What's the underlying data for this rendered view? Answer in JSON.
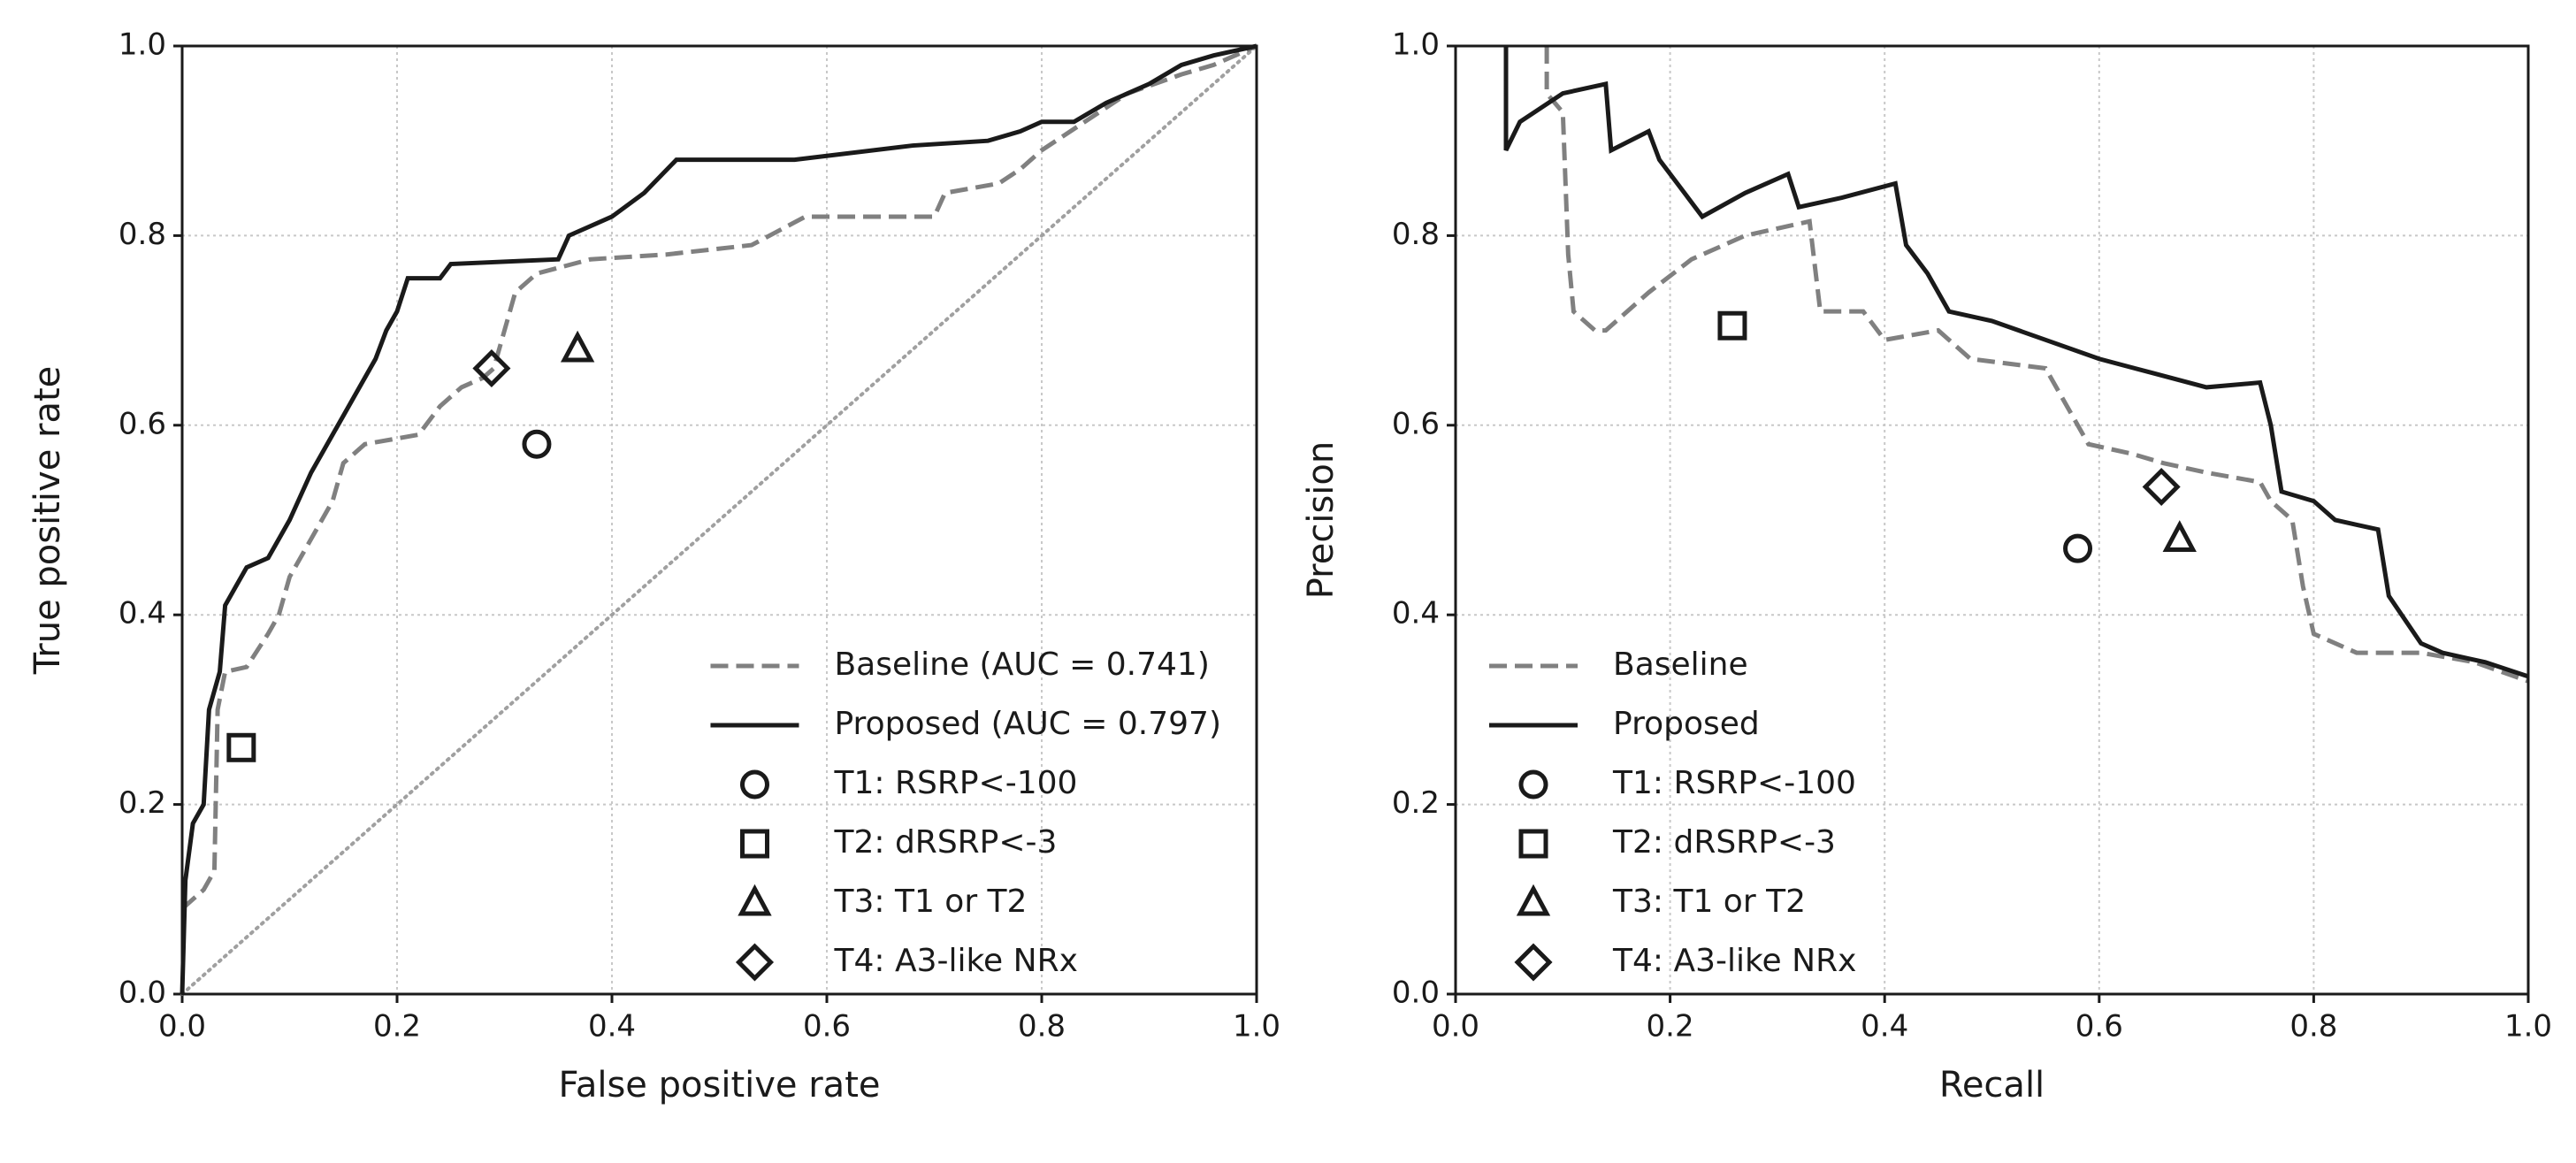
{
  "chart_data": [
    {
      "type": "line",
      "x_label": "False positive rate",
      "y_label": "True positive rate",
      "xlim": [
        0,
        1
      ],
      "ylim": [
        0,
        1
      ],
      "xticks": [
        {
          "value": 0,
          "label": "0.0"
        },
        0.2,
        0.4,
        0.6,
        0.8,
        {
          "value": 1,
          "label": "1.0"
        }
      ],
      "yticks": [
        {
          "value": 0,
          "label": "0.0"
        },
        0.2,
        0.4,
        0.6,
        0.8,
        {
          "value": 1,
          "label": "1.0"
        }
      ],
      "grid": true,
      "chance_line": true,
      "legend": "lower right",
      "series": [
        {
          "name": "Baseline (AUC = 0.741)",
          "color": "#808080",
          "style": "dashed",
          "x": [
            0,
            0.02,
            0.03,
            0.033,
            0.04,
            0.06,
            0.08,
            0.09,
            0.1,
            0.12,
            0.14,
            0.15,
            0.17,
            0.22,
            0.24,
            0.26,
            0.28,
            0.29,
            0.3,
            0.31,
            0.33,
            0.38,
            0.45,
            0.53,
            0.58,
            0.7,
            0.71,
            0.76,
            0.78,
            0.8,
            0.84,
            0.88,
            0.93,
            0.96,
            1
          ],
          "values": [
            0.09,
            0.11,
            0.13,
            0.3,
            0.34,
            0.345,
            0.38,
            0.4,
            0.44,
            0.48,
            0.52,
            0.56,
            0.58,
            0.59,
            0.62,
            0.64,
            0.65,
            0.66,
            0.7,
            0.74,
            0.76,
            0.775,
            0.78,
            0.79,
            0.82,
            0.82,
            0.845,
            0.855,
            0.87,
            0.89,
            0.92,
            0.95,
            0.97,
            0.98,
            1
          ]
        },
        {
          "name": "Proposed (AUC = 0.797)",
          "color": "#1a1a1a",
          "style": "solid",
          "x": [
            0,
            0.003,
            0.01,
            0.02,
            0.025,
            0.035,
            0.04,
            0.05,
            0.06,
            0.08,
            0.1,
            0.12,
            0.14,
            0.15,
            0.16,
            0.18,
            0.19,
            0.2,
            0.21,
            0.24,
            0.25,
            0.35,
            0.36,
            0.4,
            0.43,
            0.46,
            0.57,
            0.68,
            0.75,
            0.78,
            0.8,
            0.83,
            0.86,
            0.9,
            0.93,
            0.96,
            1
          ],
          "values": [
            0,
            0.12,
            0.18,
            0.2,
            0.3,
            0.34,
            0.41,
            0.43,
            0.45,
            0.46,
            0.5,
            0.55,
            0.59,
            0.61,
            0.63,
            0.67,
            0.7,
            0.72,
            0.755,
            0.755,
            0.77,
            0.775,
            0.8,
            0.82,
            0.845,
            0.88,
            0.88,
            0.895,
            0.9,
            0.91,
            0.92,
            0.92,
            0.94,
            0.96,
            0.98,
            0.99,
            1
          ]
        },
        {
          "name": "T1: RSRP<-100",
          "color": "#1a1a1a",
          "marker": "circle",
          "x": [
            0.33
          ],
          "values": [
            0.58
          ]
        },
        {
          "name": "T2: dRSRP<-3",
          "color": "#1a1a1a",
          "marker": "square",
          "x": [
            0.055
          ],
          "values": [
            0.26
          ]
        },
        {
          "name": "T3: T1 or T2",
          "color": "#1a1a1a",
          "marker": "triangle",
          "x": [
            0.368
          ],
          "values": [
            0.68
          ]
        },
        {
          "name": "T4: A3-like NRx",
          "color": "#1a1a1a",
          "marker": "diamond",
          "x": [
            0.288
          ],
          "values": [
            0.66
          ]
        }
      ]
    },
    {
      "type": "line",
      "x_label": "Recall",
      "y_label": "Precision",
      "xlim": [
        0,
        1
      ],
      "ylim": [
        0,
        1
      ],
      "xticks": [
        {
          "value": 0,
          "label": "0.0"
        },
        0.2,
        0.4,
        0.6,
        0.8,
        {
          "value": 1,
          "label": "1.0"
        }
      ],
      "yticks": [
        {
          "value": 0,
          "label": "0.0"
        },
        0.2,
        0.4,
        0.6,
        0.8,
        {
          "value": 1,
          "label": "1.0"
        }
      ],
      "grid": true,
      "chance_line": false,
      "legend": "lower left",
      "series": [
        {
          "name": "Baseline",
          "color": "#808080",
          "style": "dashed",
          "x": [
            0.085,
            0.085,
            0.1,
            0.105,
            0.11,
            0.13,
            0.14,
            0.18,
            0.22,
            0.27,
            0.33,
            0.34,
            0.38,
            0.4,
            0.45,
            0.48,
            0.55,
            0.57,
            0.59,
            0.63,
            0.66,
            0.7,
            0.75,
            0.76,
            0.78,
            0.79,
            0.8,
            0.84,
            0.9,
            0.95,
            1
          ],
          "values": [
            1,
            0.95,
            0.93,
            0.78,
            0.72,
            0.7,
            0.7,
            0.74,
            0.775,
            0.8,
            0.815,
            0.72,
            0.72,
            0.69,
            0.7,
            0.67,
            0.66,
            0.62,
            0.58,
            0.57,
            0.56,
            0.55,
            0.54,
            0.52,
            0.5,
            0.43,
            0.38,
            0.36,
            0.36,
            0.35,
            0.33
          ]
        },
        {
          "name": "Proposed",
          "color": "#1a1a1a",
          "style": "solid",
          "x": [
            0.047,
            0.047,
            0.06,
            0.1,
            0.14,
            0.145,
            0.18,
            0.19,
            0.21,
            0.23,
            0.27,
            0.31,
            0.32,
            0.36,
            0.41,
            0.42,
            0.44,
            0.46,
            0.5,
            0.55,
            0.6,
            0.65,
            0.7,
            0.75,
            0.76,
            0.77,
            0.8,
            0.82,
            0.86,
            0.87,
            0.9,
            0.92,
            0.96,
            1
          ],
          "values": [
            1,
            0.89,
            0.92,
            0.95,
            0.96,
            0.89,
            0.91,
            0.88,
            0.85,
            0.82,
            0.845,
            0.865,
            0.83,
            0.84,
            0.855,
            0.79,
            0.76,
            0.72,
            0.71,
            0.69,
            0.67,
            0.655,
            0.64,
            0.645,
            0.6,
            0.53,
            0.52,
            0.5,
            0.49,
            0.42,
            0.37,
            0.36,
            0.35,
            0.335
          ]
        },
        {
          "name": "T1: RSRP<-100",
          "color": "#1a1a1a",
          "marker": "circle",
          "x": [
            0.58
          ],
          "values": [
            0.47
          ]
        },
        {
          "name": "T2: dRSRP<-3",
          "color": "#1a1a1a",
          "marker": "square",
          "x": [
            0.258
          ],
          "values": [
            0.705
          ]
        },
        {
          "name": "T3: T1 or T2",
          "color": "#1a1a1a",
          "marker": "triangle",
          "x": [
            0.675
          ],
          "values": [
            0.48
          ]
        },
        {
          "name": "T4: A3-like NRx",
          "color": "#1a1a1a",
          "marker": "diamond",
          "x": [
            0.658
          ],
          "values": [
            0.535
          ]
        }
      ]
    }
  ]
}
